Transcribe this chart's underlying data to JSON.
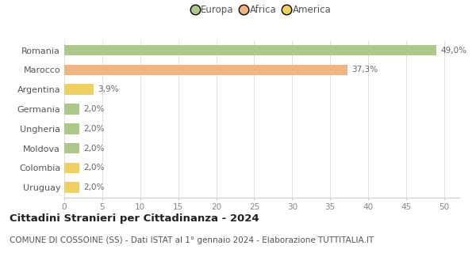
{
  "categories": [
    "Romania",
    "Marocco",
    "Argentina",
    "Germania",
    "Ungheria",
    "Moldova",
    "Colombia",
    "Uruguay"
  ],
  "values": [
    49.0,
    37.3,
    3.9,
    2.0,
    2.0,
    2.0,
    2.0,
    2.0
  ],
  "labels": [
    "49,0%",
    "37,3%",
    "3,9%",
    "2,0%",
    "2,0%",
    "2,0%",
    "2,0%",
    "2,0%"
  ],
  "colors": [
    "#adc98a",
    "#f0b482",
    "#f0d060",
    "#adc98a",
    "#adc98a",
    "#adc98a",
    "#f0d060",
    "#f0d060"
  ],
  "legend": [
    {
      "label": "Europa",
      "color": "#adc98a"
    },
    {
      "label": "Africa",
      "color": "#f0b482"
    },
    {
      "label": "America",
      "color": "#f0d060"
    }
  ],
  "xlim": [
    0,
    52
  ],
  "xticks": [
    0,
    5,
    10,
    15,
    20,
    25,
    30,
    35,
    40,
    45,
    50
  ],
  "title": "Cittadini Stranieri per Cittadinanza - 2024",
  "subtitle": "COMUNE DI COSSOINE (SS) - Dati ISTAT al 1° gennaio 2024 - Elaborazione TUTTITALIA.IT",
  "title_fontsize": 9.5,
  "subtitle_fontsize": 7.5,
  "bar_height": 0.55,
  "background_color": "#ffffff",
  "grid_color": "#e0e0e0"
}
